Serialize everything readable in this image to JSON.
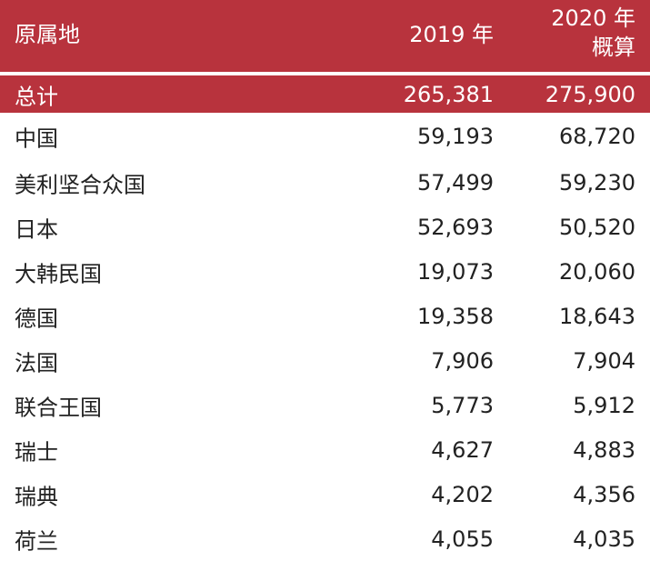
{
  "header": {
    "col_origin": "原属地",
    "col_2019": "2019 年",
    "col_2020_line1": "2020 年",
    "col_2020_line2": "概算"
  },
  "total": {
    "name": "总计",
    "v2019": "265,381",
    "v2020": "275,900"
  },
  "rows": [
    {
      "name": "中国",
      "v2019": "59,193",
      "v2020": "68,720"
    },
    {
      "name": "美利坚合众国",
      "v2019": "57,499",
      "v2020": "59,230"
    },
    {
      "name": "日本",
      "v2019": "52,693",
      "v2020": "50,520"
    },
    {
      "name": "大韩民国",
      "v2019": "19,073",
      "v2020": "20,060"
    },
    {
      "name": "德国",
      "v2019": "19,358",
      "v2020": "18,643"
    },
    {
      "name": "法国",
      "v2019": "7,906",
      "v2020": "7,904"
    },
    {
      "name": "联合王国",
      "v2019": "5,773",
      "v2020": "5,912"
    },
    {
      "name": "瑞士",
      "v2019": "4,627",
      "v2020": "4,883"
    },
    {
      "name": "瑞典",
      "v2019": "4,202",
      "v2020": "4,356"
    },
    {
      "name": "荷兰",
      "v2019": "4,055",
      "v2020": "4,035"
    }
  ],
  "colors": {
    "header_bg": "#b8333d",
    "header_text": "#ffffff",
    "body_text": "#222222"
  }
}
